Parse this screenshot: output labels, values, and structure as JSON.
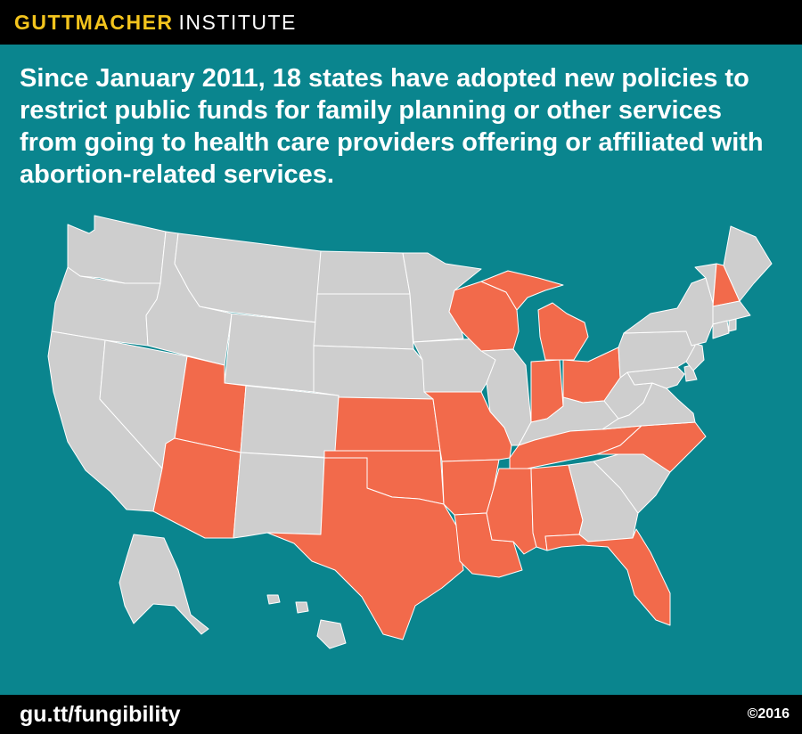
{
  "brand": {
    "name_bold": "GUTTMACHER",
    "name_light": "INSTITUTE"
  },
  "headline": "Since January 2011, 18 states have adopted new policies to restrict public funds for family planning or other services from going to health care providers offering or affiliated with abortion-related services.",
  "map": {
    "colors": {
      "background": "#0a858e",
      "restricted": "#f26a4b",
      "other": "#cecece",
      "border": "#ffffff"
    },
    "restricted_states": [
      "Arizona",
      "Utah",
      "Kansas",
      "Oklahoma",
      "Texas",
      "Missouri",
      "Arkansas",
      "Louisiana",
      "Wisconsin",
      "Michigan",
      "Indiana",
      "Ohio",
      "Tennessee",
      "North Carolina",
      "Mississippi",
      "Alabama",
      "Florida",
      "New Hampshire"
    ]
  },
  "footer": {
    "link": "gu.tt/fungibility",
    "copyright": "©2016"
  }
}
